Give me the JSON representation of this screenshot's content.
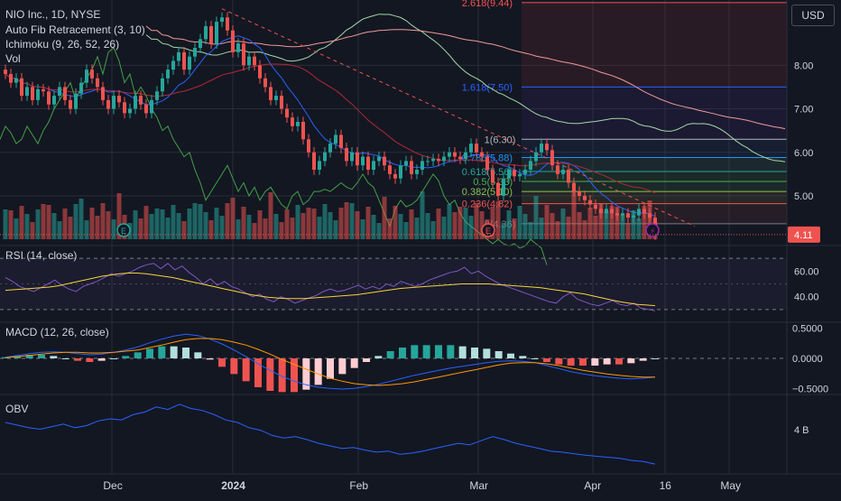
{
  "header": {
    "symbol": "NIO Inc., 1D, NYSE",
    "indicators": [
      "Auto Fib Retracement (3, 10)",
      "Ichimoku (9, 26, 52, 26)",
      "Vol"
    ],
    "currency_button": "USD"
  },
  "colors": {
    "background": "#131722",
    "up": "#26a69a",
    "down": "#ef5350",
    "grid": "#2a2e39",
    "rsi": "#7e57c2",
    "rsi_ma": "#f6d33a",
    "macd": "#2962ff",
    "signal": "#ff9800",
    "obv": "#2962ff",
    "tenkan": "#2962ff",
    "kijun": "#b22833",
    "lagging": "#43a047",
    "span_a": "#a5d6a7",
    "span_b": "#ef9a9a"
  },
  "chart_data": [
    {
      "type": "candlestick",
      "title": "NIO Inc., 1D, NYSE",
      "x_ticks": [
        "Dec",
        "2024",
        "Feb",
        "Mar",
        "Apr",
        "16",
        "May"
      ],
      "y_ticks": [
        "8.00",
        "7.00",
        "6.00",
        "5.00"
      ],
      "ylim": [
        3.9,
        9.5
      ],
      "last_price": "4.11",
      "ohlc_closes": [
        7.8,
        7.6,
        7.7,
        7.3,
        7.5,
        7.2,
        7.45,
        7.4,
        7.1,
        7.3,
        7.5,
        7.2,
        7.0,
        7.35,
        7.6,
        7.9,
        7.7,
        7.5,
        7.2,
        7.0,
        7.3,
        7.15,
        6.9,
        7.0,
        7.3,
        7.1,
        6.9,
        7.2,
        7.4,
        7.7,
        7.9,
        8.1,
        8.3,
        7.9,
        8.2,
        8.4,
        8.6,
        8.9,
        8.5,
        9.0,
        9.1,
        8.8,
        8.3,
        8.5,
        8.0,
        8.2,
        8.0,
        7.7,
        7.5,
        7.2,
        7.3,
        7.0,
        6.8,
        6.6,
        6.7,
        6.3,
        6.0,
        5.6,
        5.8,
        6.0,
        6.2,
        6.4,
        6.1,
        5.8,
        6.0,
        5.7,
        5.9,
        5.6,
        5.8,
        5.9,
        5.7,
        5.5,
        5.4,
        5.7,
        5.8,
        5.5,
        5.6,
        5.8,
        5.8,
        5.85,
        5.8,
        5.9,
        6.0,
        5.9,
        5.85,
        6.0,
        6.2,
        6.0,
        5.9,
        5.6,
        5.3,
        5.0,
        5.4,
        5.6,
        5.45,
        5.5,
        5.6,
        5.8,
        6.0,
        6.2,
        6.05,
        5.7,
        5.5,
        5.6,
        5.3,
        5.1,
        5.0,
        4.9,
        4.8,
        4.7,
        4.6,
        4.7,
        4.6,
        4.55,
        4.6,
        4.5,
        4.55,
        4.7,
        4.6,
        4.5,
        4.11
      ],
      "fib_levels": [
        {
          "label": "2.618(9.44)",
          "value": 9.44
        },
        {
          "label": "1.618(7.50)",
          "value": 7.5
        },
        {
          "label": "1(6.30)",
          "value": 6.3
        },
        {
          "label": "0.786(5.88)",
          "value": 5.88
        },
        {
          "label": "0.618(5.56)",
          "value": 5.56
        },
        {
          "label": "0.5(5.33)",
          "value": 5.33
        },
        {
          "label": "0.382(5.10)",
          "value": 5.1
        },
        {
          "label": "0.236(4.82)",
          "value": 4.82
        },
        {
          "label": "0(4.36)",
          "value": 4.36
        }
      ],
      "event_markers": [
        "E",
        "E",
        "lightning"
      ]
    },
    {
      "type": "line",
      "title": "RSI (14, close)",
      "y_ticks": [
        "60.00",
        "40.00"
      ],
      "ylim": [
        20,
        80
      ],
      "bands": [
        70,
        30
      ],
      "series": [
        {
          "values": [
            55,
            52,
            48,
            46,
            44,
            47,
            50,
            53,
            49,
            46,
            44,
            48,
            50,
            52,
            55,
            58,
            56,
            58,
            60,
            63,
            65,
            66,
            62,
            66,
            61,
            64,
            59,
            55,
            50,
            54,
            49,
            52,
            48,
            46,
            43,
            40,
            42,
            38,
            36,
            40,
            38,
            35,
            37,
            39,
            41,
            44,
            46,
            44,
            45,
            47,
            49,
            46,
            48,
            46,
            50,
            48,
            52,
            50,
            48,
            50,
            53,
            55,
            57,
            59,
            60,
            63,
            58,
            60,
            56,
            53,
            50,
            48,
            46,
            44,
            42,
            40,
            38,
            36,
            35,
            40,
            43,
            38,
            36,
            34,
            33,
            35,
            37,
            34,
            33,
            35,
            31,
            30,
            29
          ]
        },
        {
          "values": [
            45,
            45.5,
            46,
            46.5,
            47,
            47.5,
            48.5,
            50,
            51.5,
            53,
            54.5,
            56,
            57,
            58,
            58.5,
            58.5,
            58,
            57,
            56,
            55,
            53.5,
            52,
            50.5,
            49,
            47.5,
            46,
            44.5,
            43,
            41.5,
            40.5,
            39.5,
            39,
            38.5,
            38.5,
            38.5,
            39,
            39.5,
            40,
            40.5,
            41,
            41.5,
            42.5,
            43.5,
            44.5,
            45.5,
            46.5,
            47,
            47.5,
            48,
            48.5,
            49,
            49.5,
            50,
            50,
            50,
            50,
            49.5,
            49,
            48.5,
            48,
            47.5,
            47,
            46,
            45,
            44,
            43,
            42,
            40.5,
            39,
            37.5,
            36,
            35,
            34,
            33.5,
            33
          ]
        }
      ]
    },
    {
      "type": "line",
      "title": "MACD (12, 26, close)",
      "y_ticks": [
        "0.5000",
        "0.0000",
        "−0.5000"
      ],
      "ylim": [
        -0.6,
        0.6
      ],
      "series": [
        {
          "values": [
            0.02,
            0.05,
            0.08,
            0.1,
            0.11,
            0.1,
            0.08,
            0.06,
            0.07,
            0.1,
            0.14,
            0.19,
            0.26,
            0.32,
            0.37,
            0.4,
            0.38,
            0.32,
            0.24,
            0.14,
            0.03,
            -0.09,
            -0.2,
            -0.3,
            -0.38,
            -0.44,
            -0.48,
            -0.5,
            -0.51,
            -0.5,
            -0.47,
            -0.43,
            -0.38,
            -0.33,
            -0.28,
            -0.24,
            -0.2,
            -0.16,
            -0.13,
            -0.1,
            -0.07,
            -0.05,
            -0.04,
            -0.05,
            -0.07,
            -0.12,
            -0.17,
            -0.22,
            -0.26,
            -0.29,
            -0.31,
            -0.33,
            -0.34,
            -0.33,
            -0.31
          ]
        },
        {
          "values": [
            0.01,
            0.03,
            0.05,
            0.07,
            0.09,
            0.1,
            0.1,
            0.09,
            0.09,
            0.1,
            0.12,
            0.14,
            0.18,
            0.22,
            0.27,
            0.31,
            0.33,
            0.33,
            0.31,
            0.27,
            0.22,
            0.15,
            0.07,
            -0.02,
            -0.1,
            -0.18,
            -0.26,
            -0.33,
            -0.38,
            -0.42,
            -0.44,
            -0.45,
            -0.44,
            -0.42,
            -0.39,
            -0.35,
            -0.31,
            -0.27,
            -0.23,
            -0.19,
            -0.15,
            -0.11,
            -0.08,
            -0.07,
            -0.07,
            -0.09,
            -0.12,
            -0.16,
            -0.2,
            -0.23,
            -0.26,
            -0.28,
            -0.3,
            -0.31,
            -0.31
          ]
        }
      ]
    },
    {
      "type": "line",
      "title": "OBV",
      "y_ticks": [
        "4 B"
      ],
      "series": [
        {
          "values": [
            4.05,
            4.0,
            3.95,
            3.92,
            3.97,
            4.02,
            3.95,
            3.99,
            4.08,
            4.12,
            4.1,
            4.2,
            4.25,
            4.35,
            4.3,
            4.4,
            4.32,
            4.28,
            4.2,
            4.1,
            4.05,
            3.95,
            3.9,
            3.8,
            3.75,
            3.78,
            3.72,
            3.65,
            3.6,
            3.55,
            3.57,
            3.52,
            3.48,
            3.5,
            3.44,
            3.46,
            3.5,
            3.55,
            3.6,
            3.65,
            3.62,
            3.7,
            3.78,
            3.72,
            3.65,
            3.6,
            3.55,
            3.5,
            3.48,
            3.45,
            3.42,
            3.4,
            3.38,
            3.36,
            3.32,
            3.3,
            3.25
          ]
        }
      ]
    }
  ]
}
